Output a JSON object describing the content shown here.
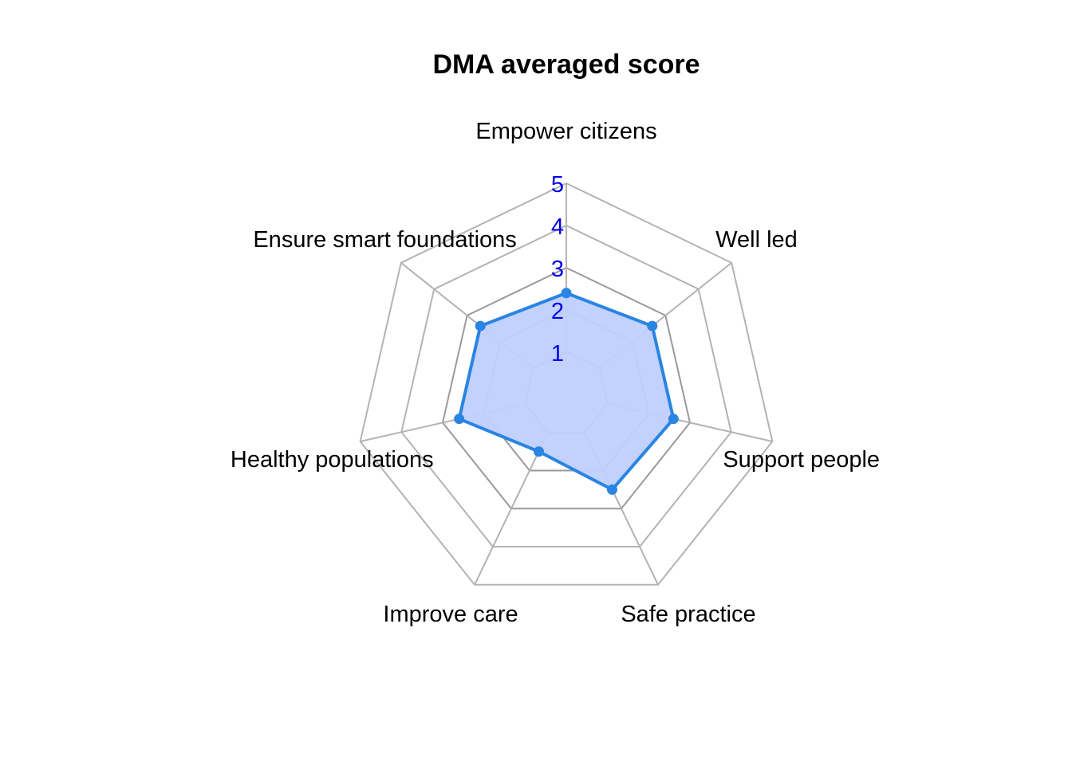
{
  "chart_data": {
    "type": "radar",
    "title": "DMA averaged score",
    "axes": [
      "Empower citizens",
      "Well led",
      "Support people",
      "Safe practice",
      "Improve care",
      "Healthy populations",
      "Ensure smart foundations"
    ],
    "rlim": [
      0,
      5
    ],
    "ticks": [
      "1",
      "2",
      "3",
      "4",
      "5"
    ],
    "grid": true,
    "legend": "none",
    "series": [
      {
        "values": [
          2.4,
          2.6,
          2.6,
          2.5,
          1.5,
          2.6,
          2.6
        ]
      }
    ],
    "colors": {
      "line": "#2a84e2",
      "fill": "#bfd0fd",
      "grid": "#b3b3b3",
      "grid_inner": "#9a9a9a",
      "tick": "#0000ee",
      "text": "#000000"
    }
  }
}
